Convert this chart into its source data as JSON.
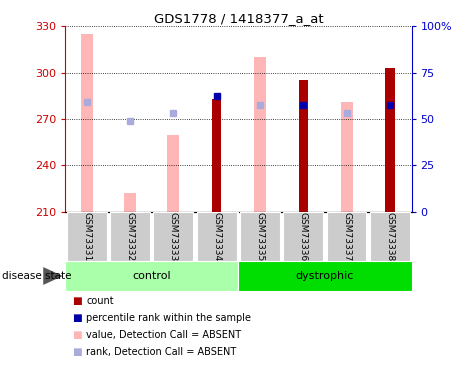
{
  "title": "GDS1778 / 1418377_a_at",
  "samples": [
    "GSM73331",
    "GSM73332",
    "GSM73333",
    "GSM73334",
    "GSM73335",
    "GSM73336",
    "GSM73337",
    "GSM73338"
  ],
  "ylim_left": [
    210,
    330
  ],
  "ylim_right": [
    0,
    100
  ],
  "yticks_left": [
    210,
    240,
    270,
    300,
    330
  ],
  "yticks_right": [
    0,
    25,
    50,
    75,
    100
  ],
  "ytick_labels_right": [
    "0",
    "25",
    "50",
    "75",
    "100%"
  ],
  "pink_bar_values": [
    325,
    222,
    260,
    null,
    310,
    null,
    281,
    null
  ],
  "light_blue_values": [
    281,
    269,
    274,
    null,
    279,
    279,
    274,
    279
  ],
  "dark_red_values": [
    null,
    null,
    null,
    283,
    null,
    295,
    null,
    303
  ],
  "blue_values": [
    null,
    null,
    null,
    285,
    null,
    279,
    null,
    279
  ],
  "pink_bar_color": "#FFB6B6",
  "light_blue_color": "#AAAADD",
  "dark_red_color": "#AA0000",
  "blue_color": "#0000AA",
  "label_color_left": "#CC0000",
  "label_color_right": "#0000CC",
  "control_color": "#AAFFAA",
  "dystrophic_color": "#00DD00",
  "sample_box_color": "#CCCCCC",
  "legend_items": [
    {
      "label": "count",
      "color": "#AA0000"
    },
    {
      "label": "percentile rank within the sample",
      "color": "#0000AA"
    },
    {
      "label": "value, Detection Call = ABSENT",
      "color": "#FFB6B6"
    },
    {
      "label": "rank, Detection Call = ABSENT",
      "color": "#AAAADD"
    }
  ]
}
